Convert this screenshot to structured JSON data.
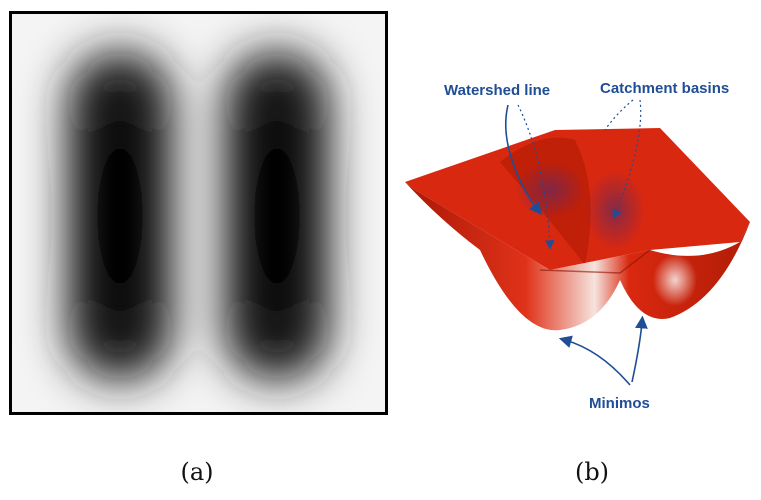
{
  "panel_a": {
    "caption": "(a)"
  },
  "panel_b": {
    "caption": "(b)",
    "labels": {
      "watershed_line": "Watershed line",
      "catchment_basins": "Catchment basins",
      "minimos": "Minimos"
    }
  },
  "colors": {
    "surface_red": "#d92810",
    "label_blue": "#1f4e96",
    "frame": "#000000"
  }
}
